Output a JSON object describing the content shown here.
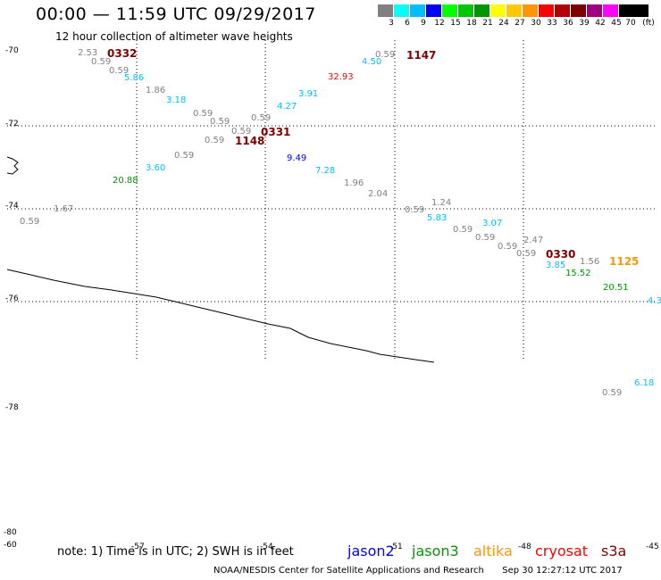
{
  "header": {
    "title": "00:00 — 11:59 UTC 09/29/2017",
    "subtitle": "12 hour collection of altimeter wave heights"
  },
  "scale": {
    "unit_label": "(ft)",
    "labels": [
      "3",
      "6",
      "9",
      "12",
      "15",
      "18",
      "21",
      "24",
      "27",
      "30",
      "33",
      "36",
      "39",
      "42",
      "45",
      "70"
    ],
    "colors": [
      "#808080",
      "#00ffff",
      "#00bfff",
      "#0000ff",
      "#00ff00",
      "#00c800",
      "#009600",
      "#ffff00",
      "#ffc800",
      "#ff9600",
      "#ff0000",
      "#b40000",
      "#800000",
      "#a00080",
      "#ff00ff",
      "#000000"
    ]
  },
  "axes": {
    "lat_labels": [
      "-70",
      "-72",
      "-74",
      "-76",
      "-78",
      "-80"
    ],
    "lon_labels": [
      "-60",
      "-57",
      "-54",
      "-51",
      "-48",
      "-45"
    ]
  },
  "observations": [
    {
      "text": "2.53",
      "color": "#808080"
    },
    {
      "text": "0332",
      "color": "#800000"
    },
    {
      "text": "0.59",
      "color": "#808080"
    },
    {
      "text": "0.59",
      "color": "#808080"
    },
    {
      "text": "5.86",
      "color": "#00bfff"
    },
    {
      "text": "1.86",
      "color": "#808080"
    },
    {
      "text": "3.18",
      "color": "#00bfff"
    },
    {
      "text": "0.59",
      "color": "#808080"
    },
    {
      "text": "0.59",
      "color": "#808080"
    },
    {
      "text": "0.59",
      "color": "#808080"
    },
    {
      "text": "0331",
      "color": "#800000"
    },
    {
      "text": "0.59",
      "color": "#808080"
    },
    {
      "text": "0.59",
      "color": "#808080"
    },
    {
      "text": "1148",
      "color": "#800000"
    },
    {
      "text": "0.59",
      "color": "#808080"
    },
    {
      "text": "3.60",
      "color": "#00bfff"
    },
    {
      "text": "20.88",
      "color": "#009600"
    },
    {
      "text": "0.59",
      "color": "#808080"
    },
    {
      "text": "1.67",
      "color": "#808080"
    },
    {
      "text": "4.27",
      "color": "#00bfff"
    },
    {
      "text": "3.91",
      "color": "#00bfff"
    },
    {
      "text": "32.93",
      "color": "#ff0000"
    },
    {
      "text": "4.50",
      "color": "#00bfff"
    },
    {
      "text": "0.59",
      "color": "#808080"
    },
    {
      "text": "1147",
      "color": "#800000"
    },
    {
      "text": "9.49",
      "color": "#0000ff"
    },
    {
      "text": "7.28",
      "color": "#00bfff"
    },
    {
      "text": "1.96",
      "color": "#808080"
    },
    {
      "text": "2.04",
      "color": "#808080"
    },
    {
      "text": "1.24",
      "color": "#808080"
    },
    {
      "text": "0.59",
      "color": "#808080"
    },
    {
      "text": "5.83",
      "color": "#00bfff"
    },
    {
      "text": "3.07",
      "color": "#00bfff"
    },
    {
      "text": "0.59",
      "color": "#808080"
    },
    {
      "text": "0.59",
      "color": "#808080"
    },
    {
      "text": "0.59",
      "color": "#808080"
    },
    {
      "text": "2.47",
      "color": "#808080"
    },
    {
      "text": "0.59",
      "color": "#808080"
    },
    {
      "text": "0330",
      "color": "#800000"
    },
    {
      "text": "3.85",
      "color": "#00bfff"
    },
    {
      "text": "1.56",
      "color": "#808080"
    },
    {
      "text": "1125",
      "color": "#ff9600"
    },
    {
      "text": "15.52",
      "color": "#009600"
    },
    {
      "text": "20.51",
      "color": "#009600"
    },
    {
      "text": "4.3",
      "color": "#00bfff"
    },
    {
      "text": "0.59",
      "color": "#808080"
    },
    {
      "text": "6.18",
      "color": "#00bfff"
    }
  ],
  "footer": {
    "note": "note: 1) Time is in UTC; 2) SWH is in feet",
    "satellites": [
      {
        "name": "jason2",
        "color": "#0000ff"
      },
      {
        "name": "jason3",
        "color": "#009600"
      },
      {
        "name": "altika",
        "color": "#ff9600"
      },
      {
        "name": "cryosat",
        "color": "#ff0000"
      },
      {
        "name": "s3a",
        "color": "#800000"
      }
    ],
    "credit": "NOAA/NESDIS Center for Satellite Applications and Research",
    "timestamp": "Sep 30 12:27:12 UTC 2017"
  }
}
